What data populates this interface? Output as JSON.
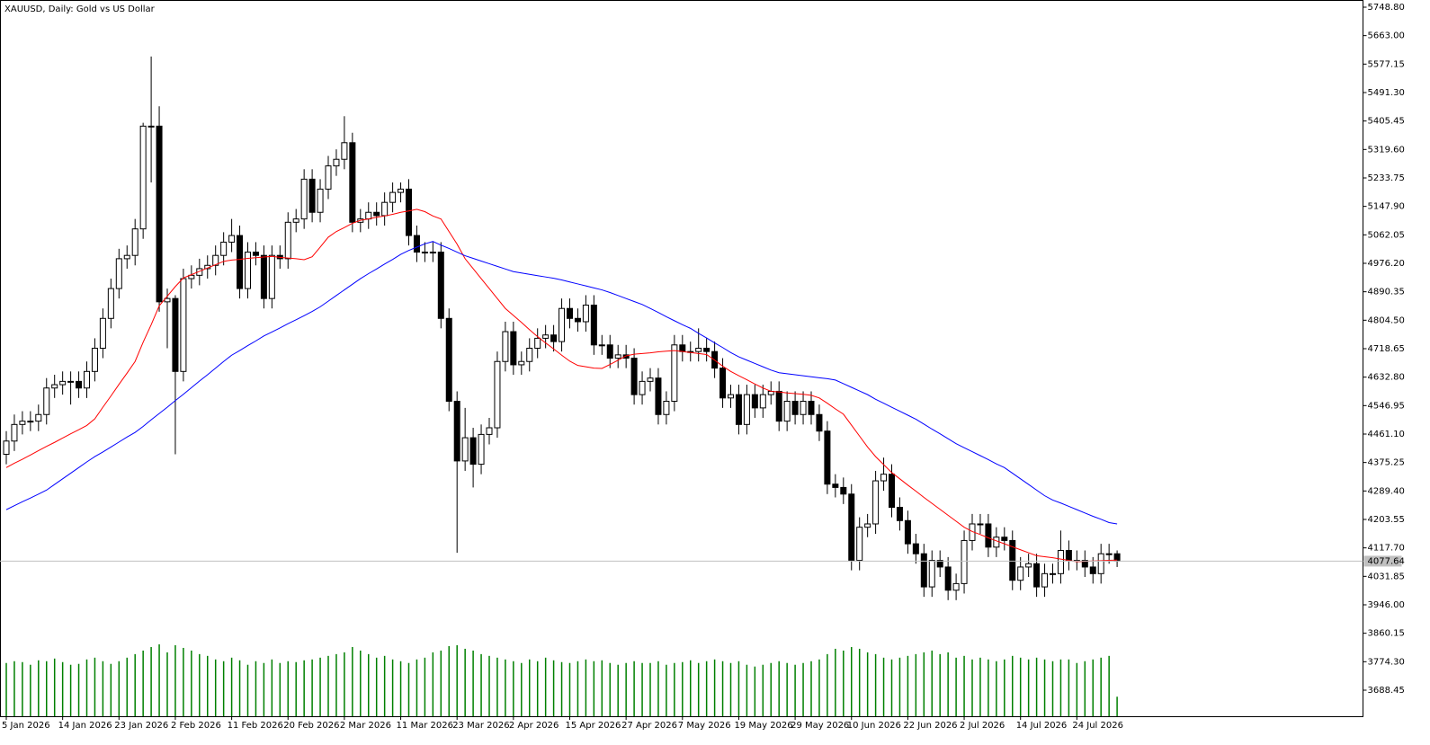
{
  "chart_data": {
    "type": "candlestick",
    "title": "XAUUSD, Daily:  Gold vs US Dollar",
    "categories": [
      "5 Jan 2026",
      null,
      null,
      null,
      null,
      null,
      null,
      "14 Jan 2026",
      null,
      null,
      null,
      null,
      null,
      null,
      "23 Jan 2026",
      null,
      null,
      null,
      null,
      null,
      null,
      "2 Feb 2026",
      null,
      null,
      null,
      null,
      null,
      null,
      "11 Feb 2026",
      null,
      null,
      null,
      null,
      null,
      null,
      "20 Feb 2026",
      null,
      null,
      null,
      null,
      null,
      null,
      "2 Mar 2026",
      null,
      null,
      null,
      null,
      null,
      null,
      "11 Mar 2026",
      null,
      null,
      null,
      null,
      null,
      null,
      "23 Mar 2026",
      null,
      null,
      null,
      null,
      null,
      null,
      "2 Apr 2026",
      null,
      null,
      null,
      null,
      null,
      null,
      "15 Apr 2026",
      null,
      null,
      null,
      null,
      null,
      null,
      "27 Apr 2026",
      null,
      null,
      null,
      null,
      null,
      null,
      "7 May 2026",
      null,
      null,
      null,
      null,
      null,
      null,
      "19 May 2026",
      null,
      null,
      null,
      null,
      null,
      null,
      "29 May 2026",
      null,
      null,
      null,
      null,
      null,
      null,
      "10 Jun 2026",
      null,
      null,
      null,
      null,
      null,
      null,
      "22 Jun 2026",
      null,
      null,
      null,
      null,
      null,
      null,
      "2 Jul 2026",
      null,
      null,
      null,
      null,
      null,
      null,
      "14 Jul 2026",
      null,
      null,
      null,
      null,
      null,
      null,
      "24 Jul 2026",
      null,
      null,
      null,
      null,
      null
    ],
    "candles": {
      "open": [
        4400,
        4440,
        4490,
        4500,
        4500,
        4520,
        4600,
        4610,
        4620,
        4620,
        4600,
        4650,
        4720,
        4810,
        4900,
        4990,
        5000,
        5080,
        5390,
        5390,
        4860,
        4870,
        4650,
        4930,
        4940,
        4960,
        4970,
        5000,
        5040,
        5060,
        4900,
        5010,
        5000,
        4870,
        5000,
        4990,
        5100,
        5110,
        5230,
        5130,
        5200,
        5270,
        5290,
        5340,
        5100,
        5110,
        5130,
        5120,
        5160,
        5190,
        5200,
        5060,
        5010,
        5010,
        5010,
        4810,
        4560,
        4380,
        4450,
        4370,
        4460,
        4480,
        4680,
        4770,
        4670,
        4680,
        4720,
        4750,
        4760,
        4740,
        4840,
        4810,
        4800,
        4850,
        4730,
        4730,
        4690,
        4700,
        4690,
        4580,
        4620,
        4630,
        4520,
        4560,
        4730,
        4710,
        4710,
        4720,
        4710,
        4660,
        4570,
        4580,
        4490,
        4580,
        4540,
        4580,
        4590,
        4500,
        4560,
        4520,
        4560,
        4520,
        4470,
        4310,
        4300,
        4280,
        4080,
        4180,
        4190,
        4320,
        4340,
        4240,
        4200,
        4130,
        4100,
        4000,
        4080,
        4060,
        3990,
        4010,
        4140,
        4190,
        4190,
        4120,
        4150,
        4140,
        4020,
        4060,
        4070,
        4000,
        4040,
        4040,
        4110,
        4080,
        4080,
        4060,
        4040,
        4100,
        4100
      ],
      "high": [
        4470,
        4520,
        4530,
        4530,
        4550,
        4630,
        4640,
        4650,
        4650,
        4650,
        4680,
        4750,
        4840,
        4930,
        5020,
        5030,
        5110,
        5400,
        5600,
        5450,
        4900,
        4880,
        4960,
        4970,
        4990,
        5000,
        5030,
        5070,
        5110,
        5090,
        5040,
        5040,
        5030,
        5030,
        5030,
        5130,
        5140,
        5260,
        5260,
        5230,
        5300,
        5320,
        5420,
        5370,
        5140,
        5160,
        5160,
        5190,
        5220,
        5220,
        5230,
        5090,
        5040,
        5040,
        5040,
        4840,
        4590,
        4540,
        4480,
        4490,
        4510,
        4710,
        4800,
        4800,
        4710,
        4750,
        4780,
        4790,
        4790,
        4870,
        4870,
        4840,
        4880,
        4880,
        4760,
        4760,
        4730,
        4730,
        4720,
        4650,
        4660,
        4660,
        4590,
        4760,
        4760,
        4740,
        4780,
        4750,
        4740,
        4690,
        4610,
        4610,
        4610,
        4610,
        4610,
        4620,
        4620,
        4590,
        4590,
        4590,
        4590,
        4550,
        4500,
        4340,
        4330,
        4310,
        4210,
        4220,
        4350,
        4390,
        4370,
        4270,
        4230,
        4160,
        4130,
        4110,
        4110,
        4090,
        4040,
        4170,
        4220,
        4220,
        4220,
        4180,
        4180,
        4170,
        4090,
        4100,
        4100,
        4070,
        4070,
        4170,
        4140,
        4110,
        4110,
        4090,
        4130,
        4130,
        4110
      ],
      "low": [
        4370,
        4410,
        4460,
        4470,
        4470,
        4490,
        4570,
        4580,
        4550,
        4570,
        4570,
        4620,
        4690,
        4780,
        4870,
        4960,
        4970,
        5050,
        5220,
        4830,
        4720,
        4400,
        4620,
        4900,
        4910,
        4930,
        4940,
        4970,
        5010,
        4870,
        4870,
        4970,
        4840,
        4840,
        4960,
        4960,
        5070,
        5080,
        5100,
        5100,
        5170,
        5240,
        5260,
        5070,
        5070,
        5080,
        5090,
        5090,
        5130,
        5160,
        5030,
        4980,
        4980,
        4980,
        4780,
        4530,
        4103,
        4350,
        4300,
        4340,
        4430,
        4450,
        4650,
        4640,
        4640,
        4650,
        4690,
        4720,
        4710,
        4710,
        4780,
        4770,
        4770,
        4700,
        4700,
        4660,
        4660,
        4660,
        4550,
        4550,
        4590,
        4490,
        4490,
        4530,
        4680,
        4680,
        4680,
        4680,
        4630,
        4540,
        4540,
        4460,
        4460,
        4510,
        4510,
        4550,
        4470,
        4470,
        4490,
        4490,
        4490,
        4440,
        4280,
        4270,
        4250,
        4050,
        4050,
        4150,
        4160,
        4290,
        4210,
        4170,
        4100,
        4070,
        3970,
        3970,
        4030,
        3960,
        3960,
        3980,
        4110,
        4160,
        4090,
        4090,
        4110,
        3990,
        3990,
        4030,
        3970,
        3970,
        4010,
        4010,
        4050,
        4050,
        4030,
        4010,
        4010,
        4070,
        4060
      ],
      "close": [
        4440,
        4490,
        4500,
        4500,
        4520,
        4600,
        4610,
        4620,
        4620,
        4600,
        4650,
        4720,
        4810,
        4900,
        4990,
        5000,
        5080,
        5390,
        5390,
        4860,
        4870,
        4650,
        4930,
        4940,
        4960,
        4970,
        5000,
        5040,
        5060,
        4900,
        5010,
        5000,
        4870,
        5000,
        4990,
        5100,
        5110,
        5230,
        5130,
        5200,
        5270,
        5290,
        5340,
        5100,
        5110,
        5130,
        5120,
        5160,
        5190,
        5200,
        5060,
        5010,
        5010,
        5010,
        4810,
        4560,
        4380,
        4450,
        4370,
        4460,
        4480,
        4680,
        4770,
        4670,
        4680,
        4720,
        4750,
        4760,
        4740,
        4840,
        4810,
        4800,
        4850,
        4730,
        4730,
        4690,
        4700,
        4690,
        4580,
        4620,
        4630,
        4520,
        4560,
        4730,
        4710,
        4710,
        4720,
        4710,
        4660,
        4570,
        4580,
        4490,
        4580,
        4540,
        4580,
        4590,
        4500,
        4560,
        4520,
        4560,
        4520,
        4470,
        4310,
        4300,
        4280,
        4080,
        4180,
        4190,
        4320,
        4340,
        4240,
        4200,
        4130,
        4100,
        4000,
        4080,
        4060,
        3990,
        4010,
        4140,
        4190,
        4190,
        4120,
        4150,
        4140,
        4020,
        4060,
        4070,
        4000,
        4040,
        4040,
        4110,
        4080,
        4080,
        4060,
        4040,
        4100,
        4100,
        4077.64
      ],
      "up_color": "#ffffff",
      "down_color": "#000000",
      "outline_color": "#000000"
    },
    "moving_averages": [
      {
        "color": "#ff0000",
        "values": [
          4360,
          4373,
          4385,
          4398,
          4411,
          4424,
          4436,
          4449,
          4462,
          4474,
          4487,
          4507,
          4542,
          4576,
          4611,
          4645,
          4680,
          4738,
          4791,
          4848,
          4877,
          4906,
          4932,
          4942,
          4952,
          4962,
          4972,
          4982,
          4986,
          4988,
          4991,
          4993,
          4995,
          4997,
          4994,
          4992,
          4990,
          4987,
          4996,
          5025,
          5055,
          5072,
          5084,
          5097,
          5106,
          5110,
          5115,
          5119,
          5124,
          5130,
          5134,
          5139,
          5132,
          5119,
          5110,
          5072,
          5034,
          4990,
          4960,
          4930,
          4900,
          4870,
          4840,
          4819,
          4798,
          4776,
          4755,
          4736,
          4718,
          4699,
          4681,
          4668,
          4664,
          4660,
          4659,
          4671,
          4684,
          4697,
          4702,
          4704,
          4706,
          4709,
          4711,
          4713,
          4710,
          4707,
          4704,
          4701,
          4684,
          4666,
          4650,
          4637,
          4625,
          4612,
          4600,
          4590,
          4588,
          4585,
          4583,
          4581,
          4578,
          4570,
          4554,
          4537,
          4521,
          4488,
          4455,
          4422,
          4393,
          4369,
          4345,
          4326,
          4307,
          4289,
          4270,
          4252,
          4234,
          4216,
          4198,
          4180,
          4167,
          4158,
          4148,
          4139,
          4130,
          4121,
          4112,
          4103,
          4094,
          4091,
          4088,
          4084,
          4080,
          4076,
          4077,
          4078,
          4079,
          4080,
          4081
        ]
      },
      {
        "color": "#0000ff",
        "values": [
          4233,
          4245,
          4257,
          4268,
          4280,
          4292,
          4309,
          4326,
          4343,
          4360,
          4377,
          4393,
          4407,
          4422,
          4437,
          4452,
          4466,
          4484,
          4504,
          4523,
          4542,
          4562,
          4581,
          4601,
          4621,
          4640,
          4660,
          4680,
          4699,
          4713,
          4728,
          4742,
          4757,
          4769,
          4781,
          4794,
          4806,
          4818,
          4831,
          4845,
          4862,
          4879,
          4896,
          4913,
          4930,
          4945,
          4959,
          4974,
          4988,
          5003,
          5015,
          5025,
          5035,
          5042,
          5031,
          5021,
          5010,
          4999,
          4991,
          4983,
          4975,
          4967,
          4959,
          4951,
          4947,
          4943,
          4939,
          4935,
          4931,
          4926,
          4920,
          4914,
          4908,
          4902,
          4896,
          4888,
          4879,
          4870,
          4861,
          4852,
          4840,
          4828,
          4815,
          4803,
          4791,
          4780,
          4765,
          4751,
          4736,
          4722,
          4707,
          4694,
          4684,
          4674,
          4664,
          4654,
          4646,
          4643,
          4640,
          4637,
          4634,
          4631,
          4628,
          4624,
          4613,
          4602,
          4591,
          4580,
          4566,
          4554,
          4542,
          4530,
          4518,
          4506,
          4491,
          4476,
          4462,
          4447,
          4432,
          4420,
          4408,
          4396,
          4384,
          4371,
          4360,
          4343,
          4326,
          4309,
          4292,
          4275,
          4262,
          4253,
          4243,
          4233,
          4223,
          4213,
          4204,
          4194,
          4190
        ]
      }
    ],
    "volume": {
      "color": "#008000",
      "values": [
        60,
        62,
        61,
        58,
        63,
        62,
        65,
        61,
        58,
        59,
        64,
        66,
        62,
        59,
        62,
        66,
        70,
        74,
        78,
        81,
        72,
        80,
        77,
        74,
        70,
        68,
        64,
        62,
        66,
        63,
        58,
        62,
        60,
        64,
        60,
        62,
        61,
        63,
        64,
        66,
        68,
        70,
        72,
        78,
        74,
        70,
        66,
        68,
        64,
        62,
        60,
        64,
        66,
        72,
        74,
        79,
        80,
        76,
        74,
        70,
        68,
        66,
        64,
        62,
        60,
        64,
        62,
        66,
        63,
        61,
        60,
        62,
        64,
        62,
        63,
        60,
        58,
        60,
        62,
        60,
        60,
        62,
        58,
        60,
        61,
        63,
        60,
        62,
        64,
        62,
        60,
        62,
        58,
        56,
        58,
        60,
        62,
        60,
        58,
        60,
        62,
        64,
        70,
        76,
        74,
        78,
        76,
        72,
        70,
        66,
        64,
        66,
        68,
        70,
        72,
        74,
        70,
        72,
        66,
        68,
        64,
        66,
        64,
        62,
        64,
        68,
        66,
        64,
        66,
        64,
        62,
        64,
        64,
        60,
        62,
        64,
        66,
        68,
        22
      ]
    },
    "last_price": {
      "value": 4077.64,
      "label": "4077.64",
      "color": "#c0c0c0"
    },
    "ylim": [
      3609.8,
      5770.5
    ],
    "yticks": [
      {
        "value": 5748.8,
        "label": "5748.80"
      },
      {
        "value": 5663.0,
        "label": "5663.00"
      },
      {
        "value": 5577.15,
        "label": "5577.15"
      },
      {
        "value": 5491.3,
        "label": "5491.30"
      },
      {
        "value": 5405.45,
        "label": "5405.45"
      },
      {
        "value": 5319.6,
        "label": "5319.60"
      },
      {
        "value": 5233.75,
        "label": "5233.75"
      },
      {
        "value": 5147.9,
        "label": "5147.90"
      },
      {
        "value": 5062.05,
        "label": "5062.05"
      },
      {
        "value": 4976.2,
        "label": "4976.20"
      },
      {
        "value": 4890.35,
        "label": "4890.35"
      },
      {
        "value": 4804.5,
        "label": "4804.50"
      },
      {
        "value": 4718.65,
        "label": "4718.65"
      },
      {
        "value": 4632.8,
        "label": "4632.80"
      },
      {
        "value": 4546.95,
        "label": "4546.95"
      },
      {
        "value": 4461.1,
        "label": "4461.10"
      },
      {
        "value": 4375.25,
        "label": "4375.25"
      },
      {
        "value": 4289.4,
        "label": "4289.40"
      },
      {
        "value": 4203.55,
        "label": "4203.55"
      },
      {
        "value": 4117.7,
        "label": "4117.70"
      },
      {
        "value": 4031.85,
        "label": "4031.85"
      },
      {
        "value": 3946.0,
        "label": "3946.00"
      },
      {
        "value": 3860.15,
        "label": "3860.15"
      },
      {
        "value": 3774.3,
        "label": "3774.30"
      },
      {
        "value": 3688.45,
        "label": "3688.45"
      }
    ],
    "grid": false
  }
}
